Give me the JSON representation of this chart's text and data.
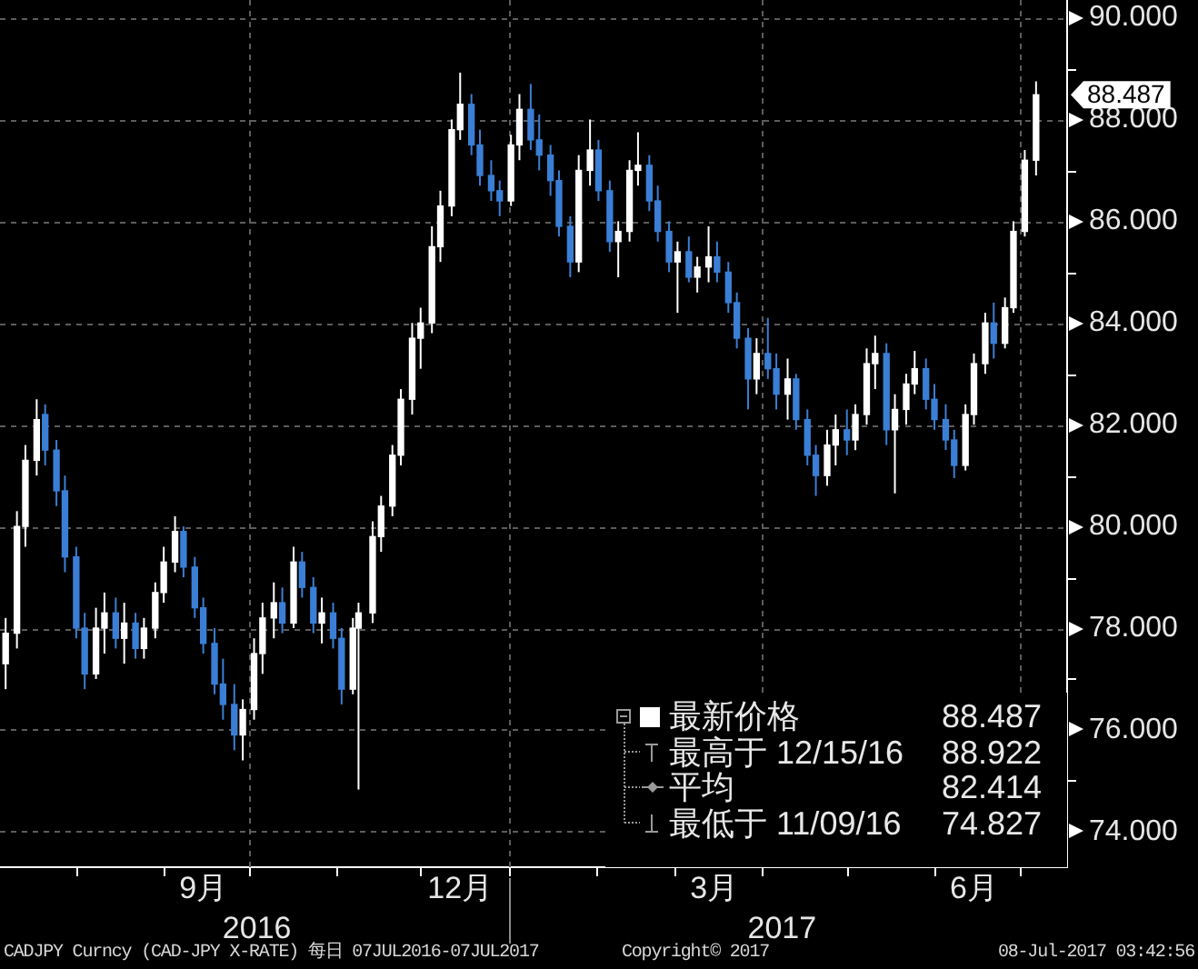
{
  "chart_data": {
    "type": "candlestick",
    "x": [
      "2016-07-07",
      "2016-07-11",
      "2016-07-14",
      "2016-07-18",
      "2016-07-21",
      "2016-07-25",
      "2016-07-28",
      "2016-08-01",
      "2016-08-04",
      "2016-08-08",
      "2016-08-11",
      "2016-08-15",
      "2016-08-18",
      "2016-08-22",
      "2016-08-25",
      "2016-08-29",
      "2016-09-01",
      "2016-09-05",
      "2016-09-08",
      "2016-09-12",
      "2016-09-15",
      "2016-09-19",
      "2016-09-22",
      "2016-09-26",
      "2016-09-29",
      "2016-10-03",
      "2016-10-06",
      "2016-10-10",
      "2016-10-13",
      "2016-10-17",
      "2016-10-20",
      "2016-10-24",
      "2016-10-27",
      "2016-10-31",
      "2016-11-03",
      "2016-11-07",
      "2016-11-09",
      "2016-11-14",
      "2016-11-17",
      "2016-11-21",
      "2016-11-24",
      "2016-11-28",
      "2016-12-01",
      "2016-12-05",
      "2016-12-08",
      "2016-12-12",
      "2016-12-15",
      "2016-12-19",
      "2016-12-22",
      "2016-12-26",
      "2016-12-29",
      "2017-01-02",
      "2017-01-05",
      "2017-01-09",
      "2017-01-12",
      "2017-01-16",
      "2017-01-19",
      "2017-01-23",
      "2017-01-26",
      "2017-01-30",
      "2017-02-02",
      "2017-02-06",
      "2017-02-09",
      "2017-02-13",
      "2017-02-16",
      "2017-02-20",
      "2017-02-23",
      "2017-02-27",
      "2017-03-02",
      "2017-03-06",
      "2017-03-09",
      "2017-03-13",
      "2017-03-16",
      "2017-03-20",
      "2017-03-23",
      "2017-03-27",
      "2017-03-30",
      "2017-04-03",
      "2017-04-06",
      "2017-04-10",
      "2017-04-13",
      "2017-04-17",
      "2017-04-20",
      "2017-04-24",
      "2017-04-27",
      "2017-05-01",
      "2017-05-04",
      "2017-05-08",
      "2017-05-11",
      "2017-05-15",
      "2017-05-18",
      "2017-05-22",
      "2017-05-25",
      "2017-05-29",
      "2017-06-01",
      "2017-06-05",
      "2017-06-08",
      "2017-06-12",
      "2017-06-15",
      "2017-06-19",
      "2017-06-22",
      "2017-06-26",
      "2017-06-29",
      "2017-07-03",
      "2017-07-07"
    ],
    "ohlc": [
      [
        77.3,
        78.2,
        76.8,
        77.9
      ],
      [
        77.9,
        80.3,
        77.6,
        80.0
      ],
      [
        80.0,
        81.6,
        79.6,
        81.3
      ],
      [
        81.3,
        82.5,
        81.0,
        82.1
      ],
      [
        82.2,
        82.4,
        81.2,
        81.5
      ],
      [
        81.5,
        81.7,
        80.4,
        80.7
      ],
      [
        80.7,
        81.0,
        79.1,
        79.4
      ],
      [
        79.4,
        79.6,
        77.8,
        78.0
      ],
      [
        78.0,
        78.3,
        76.8,
        77.1
      ],
      [
        77.1,
        78.4,
        77.0,
        78.0
      ],
      [
        78.0,
        78.7,
        77.5,
        78.3
      ],
      [
        78.3,
        78.6,
        77.6,
        77.8
      ],
      [
        77.8,
        78.5,
        77.3,
        78.1
      ],
      [
        78.1,
        78.3,
        77.4,
        77.6
      ],
      [
        77.6,
        78.2,
        77.4,
        78.0
      ],
      [
        78.0,
        78.9,
        77.8,
        78.7
      ],
      [
        78.7,
        79.6,
        78.5,
        79.3
      ],
      [
        79.3,
        80.2,
        79.1,
        79.9
      ],
      [
        79.9,
        80.0,
        79.0,
        79.2
      ],
      [
        79.2,
        79.4,
        78.2,
        78.4
      ],
      [
        78.4,
        78.6,
        77.5,
        77.7
      ],
      [
        77.7,
        78.0,
        76.7,
        76.9
      ],
      [
        76.9,
        77.4,
        76.2,
        76.5
      ],
      [
        76.5,
        76.9,
        75.6,
        75.9
      ],
      [
        75.9,
        76.6,
        75.4,
        76.4
      ],
      [
        76.4,
        77.8,
        76.2,
        77.5
      ],
      [
        77.5,
        78.5,
        77.1,
        78.2
      ],
      [
        78.2,
        78.9,
        77.8,
        78.5
      ],
      [
        78.5,
        78.8,
        77.9,
        78.1
      ],
      [
        78.1,
        79.6,
        78.0,
        79.3
      ],
      [
        79.3,
        79.5,
        78.6,
        78.8
      ],
      [
        78.8,
        79.0,
        77.9,
        78.1
      ],
      [
        78.1,
        78.6,
        77.7,
        78.3
      ],
      [
        78.3,
        78.5,
        77.6,
        77.8
      ],
      [
        77.8,
        78.0,
        76.5,
        76.8
      ],
      [
        76.8,
        78.2,
        76.7,
        78.0
      ],
      [
        78.0,
        78.5,
        74.827,
        78.3
      ],
      [
        78.3,
        80.1,
        78.1,
        79.8
      ],
      [
        79.8,
        80.6,
        79.5,
        80.4
      ],
      [
        80.4,
        81.6,
        80.2,
        81.4
      ],
      [
        81.4,
        82.7,
        81.2,
        82.5
      ],
      [
        82.5,
        84.0,
        82.2,
        83.7
      ],
      [
        83.7,
        84.3,
        83.1,
        84.0
      ],
      [
        84.0,
        85.9,
        83.8,
        85.5
      ],
      [
        85.5,
        86.6,
        85.2,
        86.3
      ],
      [
        86.3,
        88.0,
        86.1,
        87.8
      ],
      [
        87.8,
        88.922,
        87.6,
        88.3
      ],
      [
        88.3,
        88.5,
        87.3,
        87.5
      ],
      [
        87.5,
        87.8,
        86.7,
        86.9
      ],
      [
        86.9,
        87.2,
        86.4,
        86.6
      ],
      [
        86.6,
        86.8,
        86.1,
        86.4
      ],
      [
        86.4,
        87.7,
        86.3,
        87.5
      ],
      [
        87.5,
        88.5,
        87.2,
        88.2
      ],
      [
        88.2,
        88.7,
        87.4,
        87.6
      ],
      [
        87.6,
        88.1,
        87.0,
        87.3
      ],
      [
        87.3,
        87.5,
        86.5,
        86.8
      ],
      [
        86.8,
        87.0,
        85.7,
        85.9
      ],
      [
        85.9,
        86.1,
        84.9,
        85.2
      ],
      [
        85.2,
        87.3,
        85.0,
        87.0
      ],
      [
        87.0,
        88.0,
        86.7,
        87.4
      ],
      [
        87.4,
        87.6,
        86.4,
        86.6
      ],
      [
        86.6,
        86.8,
        85.4,
        85.6
      ],
      [
        85.6,
        86.0,
        84.9,
        85.8
      ],
      [
        85.8,
        87.2,
        85.6,
        87.0
      ],
      [
        87.0,
        87.75,
        86.7,
        87.1
      ],
      [
        87.1,
        87.3,
        86.2,
        86.4
      ],
      [
        86.4,
        86.7,
        85.6,
        85.8
      ],
      [
        85.8,
        86.0,
        85.0,
        85.2
      ],
      [
        85.2,
        85.6,
        84.2,
        85.4
      ],
      [
        85.4,
        85.7,
        84.8,
        84.9
      ],
      [
        84.9,
        85.3,
        84.6,
        85.1
      ],
      [
        85.1,
        85.9,
        84.8,
        85.3
      ],
      [
        85.3,
        85.6,
        84.8,
        85.0
      ],
      [
        85.0,
        85.2,
        84.2,
        84.4
      ],
      [
        84.4,
        84.6,
        83.5,
        83.7
      ],
      [
        83.7,
        83.9,
        82.3,
        82.9
      ],
      [
        82.9,
        83.7,
        82.6,
        83.4
      ],
      [
        83.4,
        84.1,
        82.9,
        83.1
      ],
      [
        83.1,
        83.4,
        82.3,
        82.6
      ],
      [
        82.6,
        83.3,
        82.1,
        82.9
      ],
      [
        82.9,
        83.0,
        81.9,
        82.1
      ],
      [
        82.1,
        82.3,
        81.2,
        81.4
      ],
      [
        81.4,
        81.6,
        80.6,
        81.0
      ],
      [
        81.0,
        81.9,
        80.8,
        81.6
      ],
      [
        81.6,
        82.2,
        81.2,
        81.9
      ],
      [
        81.9,
        82.3,
        81.4,
        81.7
      ],
      [
        81.7,
        82.4,
        81.5,
        82.2
      ],
      [
        82.2,
        83.5,
        82.0,
        83.2
      ],
      [
        83.2,
        83.75,
        82.7,
        83.4
      ],
      [
        83.4,
        83.6,
        81.6,
        81.9
      ],
      [
        81.9,
        82.6,
        80.65,
        82.3
      ],
      [
        82.3,
        83.0,
        82.0,
        82.8
      ],
      [
        82.8,
        83.45,
        82.6,
        83.1
      ],
      [
        83.1,
        83.3,
        82.3,
        82.5
      ],
      [
        82.5,
        82.8,
        81.9,
        82.1
      ],
      [
        82.1,
        82.4,
        81.5,
        81.7
      ],
      [
        81.7,
        81.9,
        80.95,
        81.2
      ],
      [
        81.2,
        82.4,
        81.1,
        82.2
      ],
      [
        82.2,
        83.4,
        82.0,
        83.2
      ],
      [
        83.2,
        84.2,
        83.0,
        84.0
      ],
      [
        84.0,
        84.4,
        83.3,
        83.6
      ],
      [
        83.6,
        84.5,
        83.5,
        84.3
      ],
      [
        84.3,
        86.0,
        84.2,
        85.8
      ],
      [
        85.8,
        87.4,
        85.7,
        87.2
      ],
      [
        87.2,
        88.75,
        86.9,
        88.487
      ]
    ],
    "colors": [
      "#ffffff",
      "#ffffff",
      "#ffffff",
      "#ffffff",
      "#3a7fd5",
      "#3a7fd5",
      "#3a7fd5",
      "#3a7fd5",
      "#3a7fd5",
      "#ffffff",
      "#ffffff",
      "#3a7fd5",
      "#ffffff",
      "#3a7fd5",
      "#ffffff",
      "#ffffff",
      "#ffffff",
      "#ffffff",
      "#3a7fd5",
      "#3a7fd5",
      "#3a7fd5",
      "#3a7fd5",
      "#3a7fd5",
      "#3a7fd5",
      "#ffffff",
      "#ffffff",
      "#ffffff",
      "#ffffff",
      "#3a7fd5",
      "#ffffff",
      "#3a7fd5",
      "#3a7fd5",
      "#ffffff",
      "#3a7fd5",
      "#3a7fd5",
      "#ffffff",
      "#ffffff",
      "#ffffff",
      "#ffffff",
      "#ffffff",
      "#ffffff",
      "#ffffff",
      "#ffffff",
      "#ffffff",
      "#ffffff",
      "#ffffff",
      "#ffffff",
      "#3a7fd5",
      "#3a7fd5",
      "#3a7fd5",
      "#3a7fd5",
      "#ffffff",
      "#ffffff",
      "#3a7fd5",
      "#3a7fd5",
      "#3a7fd5",
      "#3a7fd5",
      "#3a7fd5",
      "#ffffff",
      "#ffffff",
      "#3a7fd5",
      "#3a7fd5",
      "#ffffff",
      "#ffffff",
      "#ffffff",
      "#3a7fd5",
      "#3a7fd5",
      "#3a7fd5",
      "#ffffff",
      "#3a7fd5",
      "#ffffff",
      "#ffffff",
      "#3a7fd5",
      "#3a7fd5",
      "#3a7fd5",
      "#3a7fd5",
      "#ffffff",
      "#3a7fd5",
      "#3a7fd5",
      "#ffffff",
      "#3a7fd5",
      "#3a7fd5",
      "#3a7fd5",
      "#ffffff",
      "#ffffff",
      "#3a7fd5",
      "#ffffff",
      "#ffffff",
      "#ffffff",
      "#3a7fd5",
      "#ffffff",
      "#ffffff",
      "#ffffff",
      "#3a7fd5",
      "#3a7fd5",
      "#3a7fd5",
      "#3a7fd5",
      "#ffffff",
      "#ffffff",
      "#ffffff",
      "#3a7fd5",
      "#ffffff",
      "#ffffff",
      "#ffffff",
      "#ffffff"
    ],
    "xlim": [
      "2016-07-05",
      "2017-07-18"
    ],
    "xticks": [
      {
        "value": "2016-08-01",
        "label": null
      },
      {
        "value": "2016-09-01",
        "label": null
      },
      {
        "value": "2016-09-15",
        "label": "9月"
      },
      {
        "value": "2016-10-01",
        "label": null
      },
      {
        "value": "2016-11-01",
        "label": null
      },
      {
        "value": "2016-12-01",
        "label": null
      },
      {
        "value": "2016-12-15",
        "label": "12月"
      },
      {
        "value": "2017-01-01",
        "label": null
      },
      {
        "value": "2017-02-01",
        "label": null
      },
      {
        "value": "2017-03-01",
        "label": null
      },
      {
        "value": "2017-03-15",
        "label": "3月"
      },
      {
        "value": "2017-04-01",
        "label": null
      },
      {
        "value": "2017-05-01",
        "label": null
      },
      {
        "value": "2017-06-01",
        "label": null
      },
      {
        "value": "2017-06-15",
        "label": "6月"
      },
      {
        "value": "2017-07-01",
        "label": null
      }
    ],
    "x2lim": [
      "2016-07-05",
      "2017-07-18"
    ],
    "x2ticks": [
      {
        "value": "2016-10-04",
        "label": "2016"
      },
      {
        "value": "2017-01-01",
        "label": null
      },
      {
        "value": "2017-04-08",
        "label": "2017"
      }
    ],
    "ylim": [
      73.3,
      90.35
    ],
    "yticks": [
      {
        "value": 74,
        "label": "74.000"
      },
      {
        "value": 75,
        "label": null
      },
      {
        "value": 76,
        "label": "76.000"
      },
      {
        "value": 77,
        "label": null
      },
      {
        "value": 78,
        "label": "78.000"
      },
      {
        "value": 79,
        "label": null
      },
      {
        "value": 80,
        "label": "80.000"
      },
      {
        "value": 81,
        "label": null
      },
      {
        "value": 82,
        "label": "82.000"
      },
      {
        "value": 83,
        "label": null
      },
      {
        "value": 84,
        "label": "84.000"
      },
      {
        "value": 85,
        "label": null
      },
      {
        "value": 86,
        "label": "86.000"
      },
      {
        "value": 87,
        "label": null
      },
      {
        "value": 88,
        "label": "88.000"
      },
      {
        "value": 89,
        "label": null
      },
      {
        "value": 90,
        "label": "90.000"
      }
    ],
    "grid": "y",
    "ref_lines": [
      {
        "axis": "x",
        "value": "2016-10-01",
        "color": "#5c5c5c",
        "line_style": "dashed"
      },
      {
        "axis": "x",
        "value": "2017-01-01",
        "color": "#5c5c5c",
        "line_style": "dashed"
      },
      {
        "axis": "x",
        "value": "2017-04-01",
        "color": "#5c5c5c",
        "line_style": "dashed"
      },
      {
        "axis": "x",
        "value": "2017-07-01",
        "color": "#5c5c5c",
        "line_style": "dashed"
      }
    ],
    "annotations": [
      {
        "text": "88.487",
        "x": "2017-07-07",
        "y": 88.487
      },
      "最新价格",
      "88.487",
      "最高于 12/15/16",
      "88.922",
      "平均",
      "82.414",
      "最低于 11/09/16",
      "74.827",
      "CADJPY Curncy (CAD-JPY X-RATE) 每日 07JUL2016-07JUL2017",
      "Copyright© 2017",
      "08-Jul-2017 03:42:56"
    ]
  }
}
